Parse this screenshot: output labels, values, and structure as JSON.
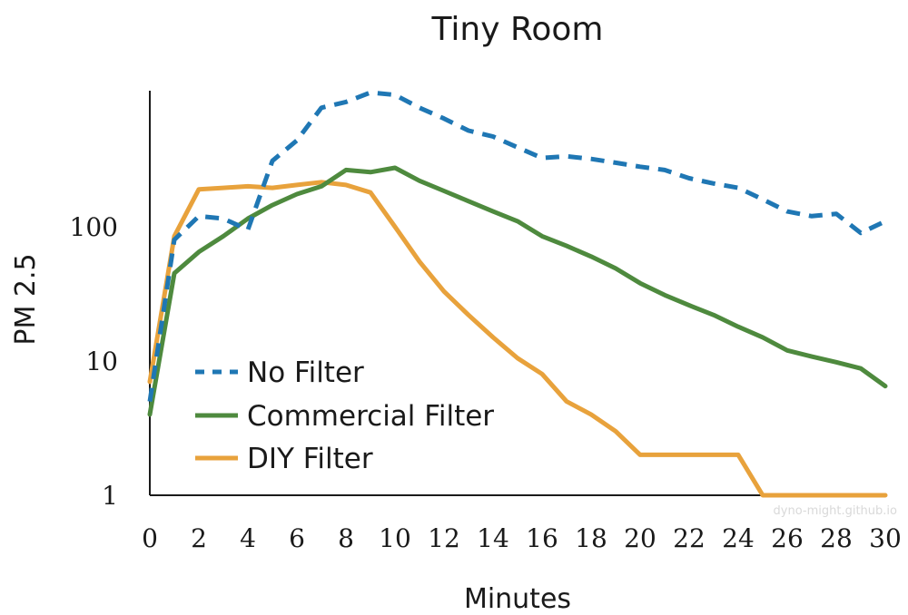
{
  "chart_data": {
    "type": "line",
    "title": "Tiny Room",
    "xlabel": "Minutes",
    "ylabel": "PM 2.5",
    "y_scale": "log",
    "xlim": [
      0,
      30
    ],
    "ylim": [
      1,
      1000
    ],
    "x_ticks": [
      0,
      2,
      4,
      6,
      8,
      10,
      12,
      14,
      16,
      18,
      20,
      22,
      24,
      26,
      28,
      30
    ],
    "x_tick_labels": [
      "0",
      "2",
      "4",
      "6",
      "8",
      "10",
      "12",
      "14",
      "16",
      "18",
      "20",
      "22",
      "24",
      "26",
      "28",
      "30"
    ],
    "y_ticks": [
      1,
      10,
      100
    ],
    "y_tick_labels": [
      "1",
      "10",
      "100"
    ],
    "grid": false,
    "legend": "left",
    "x": [
      0,
      1,
      2,
      3,
      4,
      5,
      6,
      7,
      8,
      9,
      10,
      11,
      12,
      13,
      14,
      15,
      16,
      17,
      18,
      19,
      20,
      21,
      22,
      23,
      24,
      25,
      26,
      27,
      28,
      29,
      30
    ],
    "series": [
      {
        "name": "No Filter",
        "color": "#1f77b4",
        "style": "dashed",
        "values": [
          5,
          80,
          120,
          115,
          95,
          310,
          440,
          770,
          850,
          1000,
          960,
          770,
          640,
          520,
          470,
          390,
          325,
          335,
          320,
          300,
          280,
          265,
          230,
          210,
          195,
          160,
          130,
          120,
          125,
          90,
          110
        ]
      },
      {
        "name": "Commercial Filter",
        "color": "#4e8a3e",
        "style": "solid",
        "values": [
          4,
          45,
          65,
          85,
          115,
          145,
          175,
          200,
          265,
          255,
          275,
          220,
          185,
          155,
          130,
          110,
          85,
          72,
          60,
          49,
          38,
          31,
          26,
          22,
          18,
          15,
          12,
          10.8,
          9.8,
          8.8,
          6.5
        ]
      },
      {
        "name": "DIY Filter",
        "color": "#e8a23c",
        "style": "solid",
        "values": [
          7,
          85,
          190,
          195,
          200,
          195,
          205,
          215,
          205,
          180,
          100,
          55,
          33,
          22,
          15,
          10.5,
          8,
          5,
          4,
          3,
          2,
          2,
          2,
          2,
          2,
          1,
          1,
          1,
          1,
          1,
          1
        ]
      }
    ],
    "watermark": "dyno-might.github.io"
  }
}
